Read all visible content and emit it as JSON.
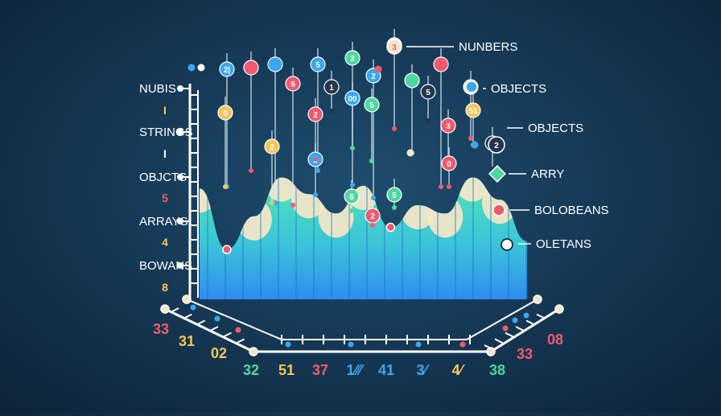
{
  "chart_data": {
    "type": "area",
    "title": "",
    "xlabel": "",
    "ylabel": "",
    "colors": {
      "background": "#163a57",
      "area_top": "#4ee6b5",
      "area_bottom": "#2f8cf0",
      "peak_cream": "#f5e6c8",
      "axis": "#ffffff",
      "pink": "#f05a6e",
      "blue": "#3aa8f0",
      "green": "#4ed8a0",
      "yellow": "#f7c65a",
      "navy": "#24364f",
      "cream": "#f5e6c8"
    },
    "left_labels": [
      {
        "text": "NUBIS",
        "color": "#ffffff"
      },
      {
        "text": "I",
        "color": "#f7c65a"
      },
      {
        "text": "STRINGS",
        "color": "#ffffff"
      },
      {
        "text": "I",
        "color": "#ffffff"
      },
      {
        "text": "OBJCTS",
        "color": "#ffffff"
      },
      {
        "text": "5",
        "color": "#f05a6e"
      },
      {
        "text": "ARRAYS",
        "color": "#ffffff"
      },
      {
        "text": "4",
        "color": "#f7c65a"
      },
      {
        "text": "BOWANS",
        "color": "#ffffff"
      },
      {
        "text": "8",
        "color": "#f7c65a"
      }
    ],
    "legend": [
      {
        "label": "NUNBERS",
        "marker": "circle-3"
      },
      {
        "label": "OBJECTS",
        "marker": "circle-blue"
      },
      {
        "label": "OBJECTS",
        "marker": "circle-2"
      },
      {
        "label": "ARRY",
        "marker": "diamond"
      },
      {
        "label": "BOLOBEANS",
        "marker": "circle-pink"
      },
      {
        "label": "OLETANS",
        "marker": "circle-cream"
      }
    ],
    "x_ticks": [
      {
        "text": "33",
        "color": "#f05a6e"
      },
      {
        "text": "31",
        "color": "#f7c65a"
      },
      {
        "text": "02",
        "color": "#f7c65a"
      },
      {
        "text": "32",
        "color": "#4ed8a0"
      },
      {
        "text": "51",
        "color": "#f7c65a"
      },
      {
        "text": "37",
        "color": "#f05a6e"
      },
      {
        "text": "1⁄⁄⁄",
        "color": "#3aa8f0"
      },
      {
        "text": "41",
        "color": "#3aa8f0"
      },
      {
        "text": "3⁄",
        "color": "#3aa8f0"
      },
      {
        "text": "4⁄",
        "color": "#f7c65a"
      },
      {
        "text": "38",
        "color": "#4ed8a0"
      },
      {
        "text": "33",
        "color": "#f05a6e"
      },
      {
        "text": "08",
        "color": "#f05a6e"
      }
    ],
    "series": [
      {
        "values": [
          80,
          36,
          60,
          88,
          76,
          62,
          82,
          52,
          68,
          62,
          88,
          72,
          42
        ]
      }
    ],
    "drops": [
      {
        "label": "2|",
        "color": "#3aa8f0",
        "text_color": "#ffffff"
      },
      {
        "label": "",
        "color": "#f05a6e",
        "text_color": "#ffffff"
      },
      {
        "label": "",
        "color": "#3aa8f0",
        "text_color": "#ffffff"
      },
      {
        "label": "5",
        "color": "#3aa8f0",
        "text_color": "#ffffff"
      },
      {
        "label": "3",
        "color": "#4ed8a0",
        "text_color": "#ffffff"
      },
      {
        "label": "3",
        "color": "#f5e6c8",
        "text_color": "#f05a6e"
      },
      {
        "label": "",
        "color": "#4ed8a0",
        "text_color": "#ffffff"
      },
      {
        "label": "",
        "color": "#f05a6e",
        "text_color": "#ffffff"
      },
      {
        "label": "(b)",
        "color": "#f5e6c8",
        "text_color": "#24364f"
      },
      {
        "label": "0",
        "color": "#f7c65a",
        "text_color": "#ffffff"
      },
      {
        "label": "2",
        "color": "#f7c65a",
        "text_color": "#ffffff"
      },
      {
        "label": "5",
        "color": "#f05a6e",
        "text_color": "#ffffff"
      },
      {
        "label": "1",
        "color": "#24364f",
        "text_color": "#ffffff"
      },
      {
        "label": "2",
        "color": "#3aa8f0",
        "text_color": "#ffffff"
      },
      {
        "label": "5",
        "color": "#4ed8a0",
        "text_color": "#ffffff"
      },
      {
        "label": "00",
        "color": "#3aa8f0",
        "text_color": "#ffffff"
      },
      {
        "label": "5",
        "color": "#24364f",
        "text_color": "#ffffff"
      },
      {
        "label": "3",
        "color": "#f05a6e",
        "text_color": "#ffffff"
      },
      {
        "label": "51",
        "color": "#f7c65a",
        "text_color": "#ffffff"
      },
      {
        "label": "2",
        "color": "#24364f",
        "text_color": "#ffffff"
      },
      {
        "label": "0",
        "color": "#f05a6e",
        "text_color": "#ffffff"
      },
      {
        "label": "2",
        "color": "#3aa8f0",
        "text_color": "#ffffff"
      },
      {
        "label": "5",
        "color": "#4ed8a0",
        "text_color": "#ffffff"
      },
      {
        "label": "6",
        "color": "#4ed8a0",
        "text_color": "#ffffff"
      },
      {
        "label": "2",
        "color": "#f05a6e",
        "text_color": "#ffffff"
      },
      {
        "label": "2",
        "color": "#f05a6e",
        "text_color": "#ffffff"
      }
    ]
  }
}
